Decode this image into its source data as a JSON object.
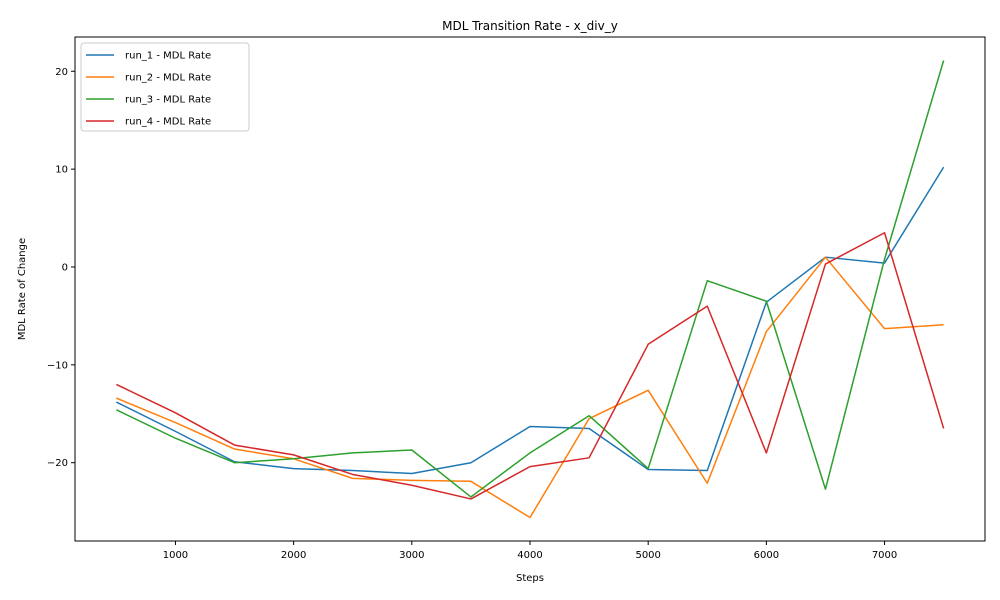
{
  "chart_data": {
    "type": "line",
    "title": "MDL Transition Rate - x_div_y",
    "xlabel": "Steps",
    "ylabel": "MDL Rate of Change",
    "x": [
      500,
      1000,
      1500,
      2000,
      2500,
      3000,
      3500,
      4000,
      4500,
      5000,
      5500,
      6000,
      6500,
      7000,
      7500
    ],
    "xlim": [
      150,
      7850
    ],
    "ylim": [
      -28,
      23.5
    ],
    "xticks": [
      1000,
      2000,
      3000,
      4000,
      5000,
      6000,
      7000
    ],
    "yticks": [
      -20,
      -10,
      0,
      10,
      20
    ],
    "grid": false,
    "legend_position": "upper-left",
    "series": [
      {
        "name": "run_1 - MDL Rate",
        "color": "#1f77b4",
        "values": [
          -13.8,
          -16.8,
          -19.9,
          -20.6,
          -20.8,
          -21.1,
          -20.0,
          -16.3,
          -16.5,
          -20.7,
          -20.8,
          -3.6,
          1.0,
          0.4,
          10.2
        ]
      },
      {
        "name": "run_2 - MDL Rate",
        "color": "#ff7f0e",
        "values": [
          -13.4,
          -15.9,
          -18.6,
          -19.6,
          -21.6,
          -21.8,
          -21.9,
          -25.6,
          -15.5,
          -12.6,
          -22.1,
          -6.6,
          1.0,
          -6.3,
          -5.9
        ]
      },
      {
        "name": "run_3 - MDL Rate",
        "color": "#2ca02c",
        "values": [
          -14.6,
          -17.5,
          -20.0,
          -19.6,
          -19.0,
          -18.7,
          -23.5,
          -19.0,
          -15.2,
          -20.6,
          -1.4,
          -3.5,
          -22.7,
          0.8,
          21.1
        ]
      },
      {
        "name": "run_4 - MDL Rate",
        "color": "#d62728",
        "values": [
          -12.0,
          -14.9,
          -18.2,
          -19.2,
          -21.2,
          -22.3,
          -23.7,
          -20.4,
          -19.5,
          -7.9,
          -4.0,
          -19.0,
          0.3,
          3.5,
          -16.5
        ]
      }
    ]
  }
}
